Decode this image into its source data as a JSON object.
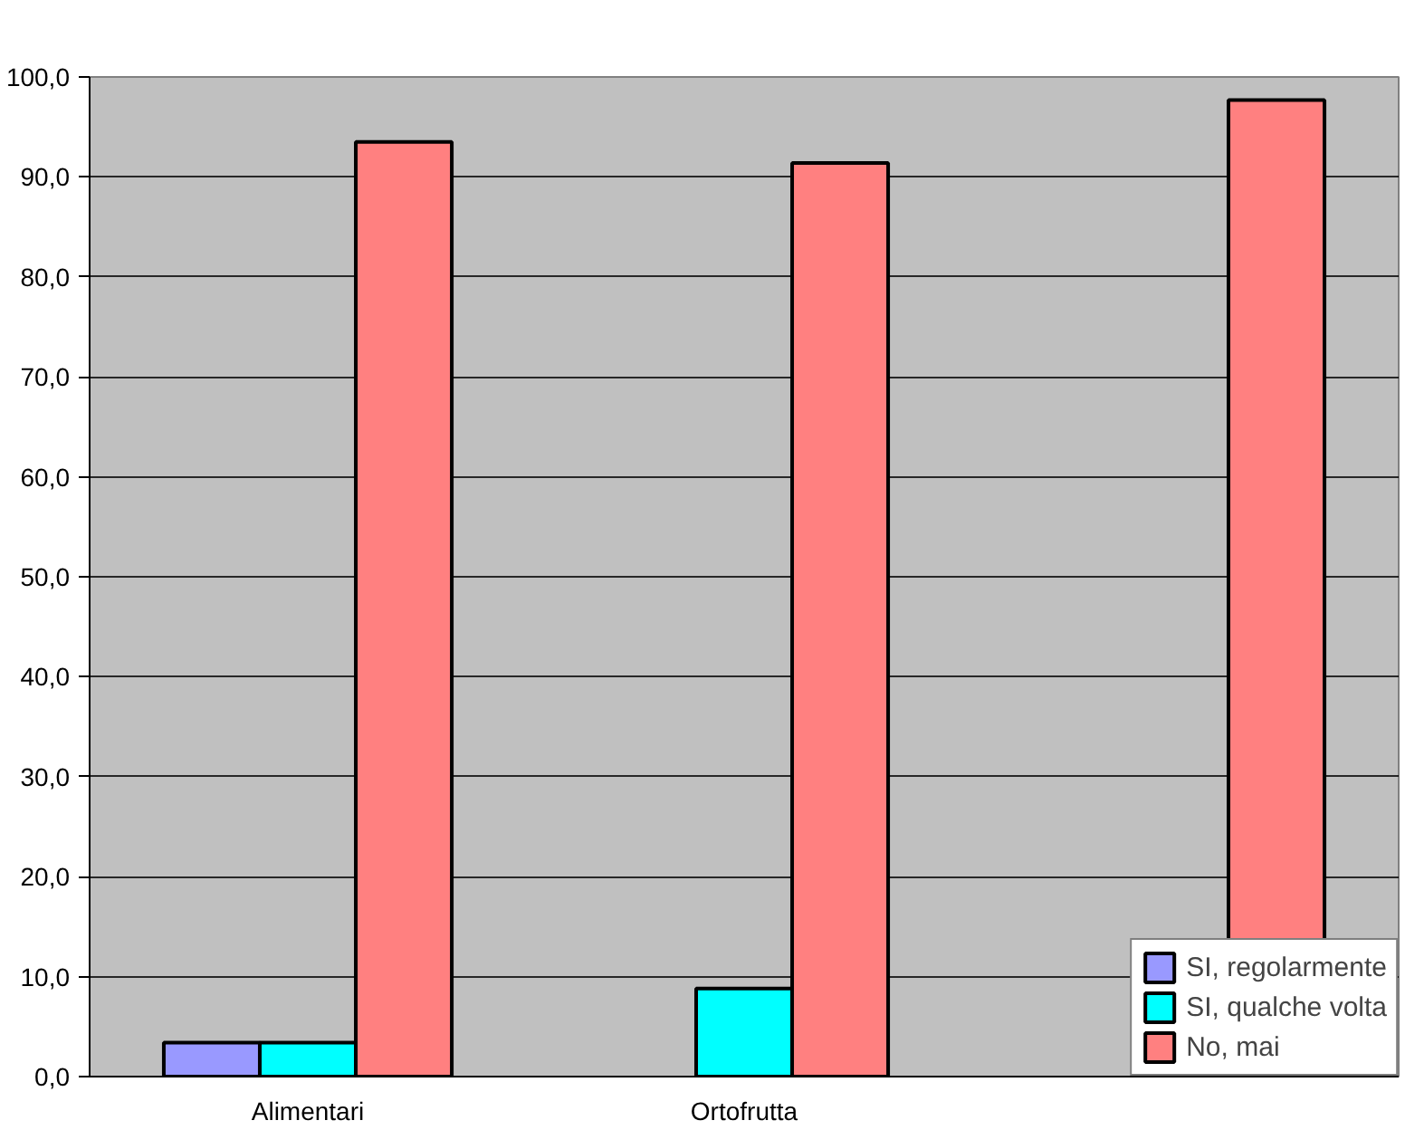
{
  "chart_data": {
    "type": "bar",
    "categories": [
      "Alimentari",
      "Ortofrutta",
      null
    ],
    "series": [
      {
        "name": "SI, regolarmente",
        "color": "#9999ff",
        "values": [
          3.4,
          null,
          null
        ]
      },
      {
        "name": "SI, qualche volta",
        "color": "#00ffff",
        "values": [
          3.4,
          8.8,
          null
        ]
      },
      {
        "name": "No, mai",
        "color": "#ff8080",
        "values": [
          93.5,
          91.4,
          97.7
        ]
      }
    ],
    "ylim": [
      0,
      100
    ],
    "yticks": [
      {
        "value": 0,
        "label": "0,0"
      },
      {
        "value": 10,
        "label": "10,0"
      },
      {
        "value": 20,
        "label": "20,0"
      },
      {
        "value": 30,
        "label": "30,0"
      },
      {
        "value": 40,
        "label": "40,0"
      },
      {
        "value": 50,
        "label": "50,0"
      },
      {
        "value": 60,
        "label": "60,0"
      },
      {
        "value": 70,
        "label": "70,0"
      },
      {
        "value": 80,
        "label": "80,0"
      },
      {
        "value": 90,
        "label": "90,0"
      },
      {
        "value": 100,
        "label": "100,0"
      }
    ],
    "grid": "y",
    "legend": "bottom right"
  }
}
